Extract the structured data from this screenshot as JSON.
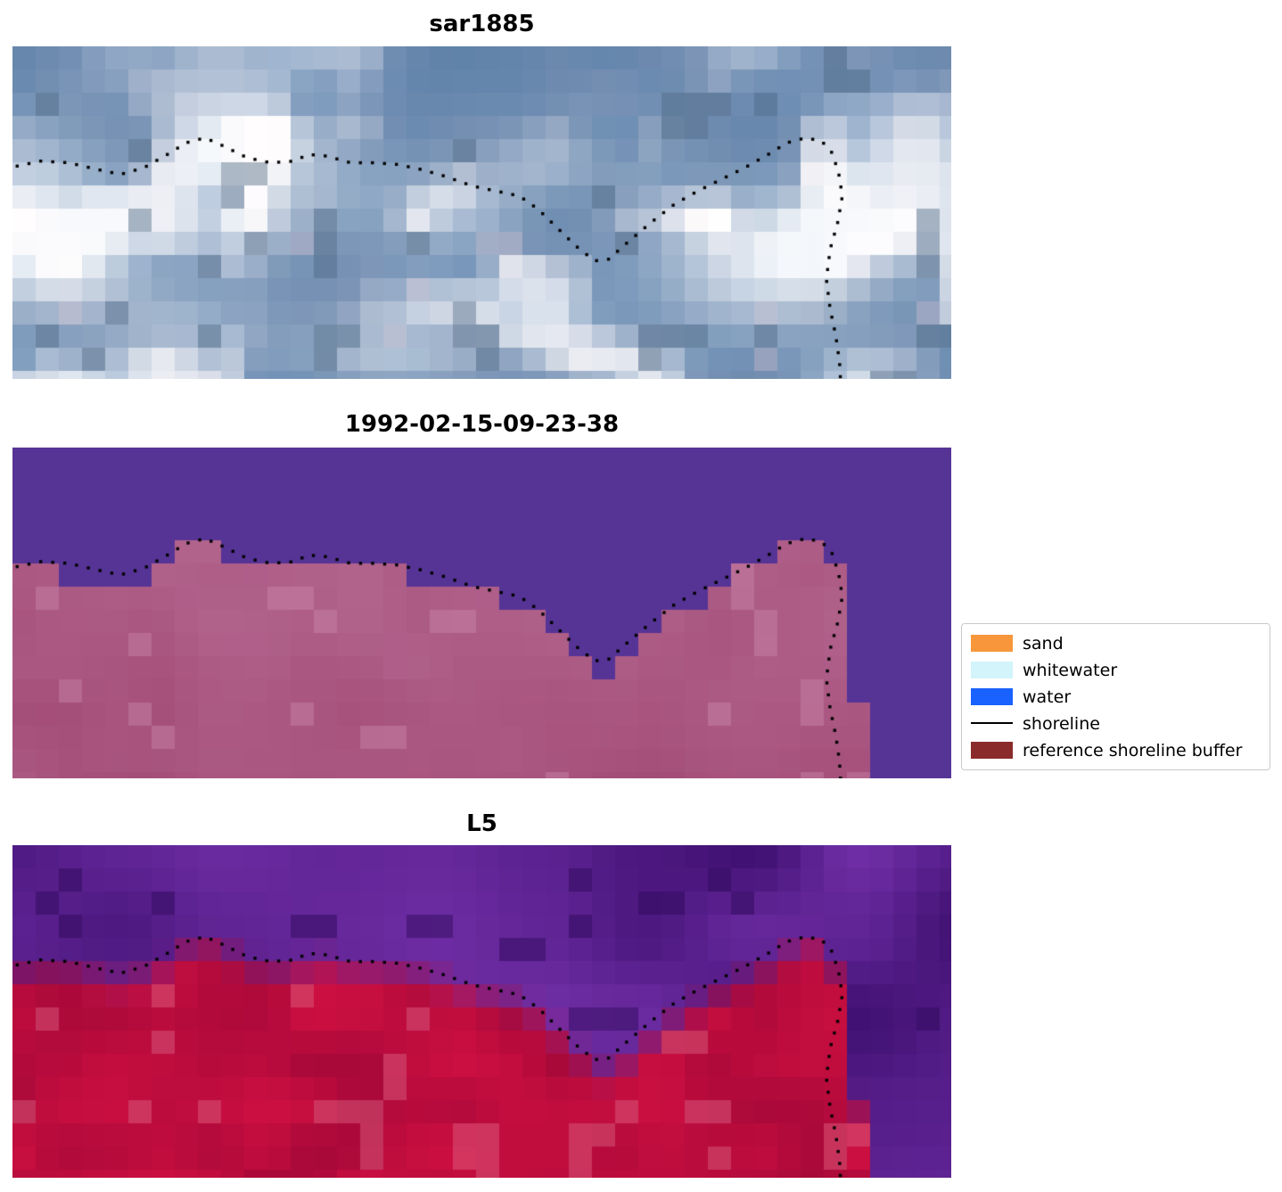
{
  "figure": {
    "panels": [
      {
        "title": "sar1885"
      },
      {
        "title": "1992-02-15-09-23-38"
      },
      {
        "title": "L5"
      }
    ],
    "legend": {
      "items": [
        {
          "label": "sand",
          "swatch": "patch",
          "color": "#F7963B"
        },
        {
          "label": "whitewater",
          "swatch": "patch",
          "color": "#D2F4FA"
        },
        {
          "label": "water",
          "swatch": "patch",
          "color": "#1A62FF"
        },
        {
          "label": "shoreline",
          "swatch": "line",
          "color": "#000000"
        },
        {
          "label": "reference shoreline buffer",
          "swatch": "patch",
          "color": "#8B2A2A"
        }
      ]
    }
  },
  "chart_data": {
    "type": "heatmap",
    "title": "",
    "panels": [
      {
        "title": "sar1885",
        "palette": [
          "#6A8AB0",
          "#FAFAFC"
        ]
      },
      {
        "title": "1992-02-15-09-23-38",
        "palette": [
          "#563496",
          "#B26692"
        ]
      },
      {
        "title": "L5",
        "palette": [
          "#5A2399",
          "#CC1C4E"
        ]
      }
    ],
    "legend_entries": [
      "sand",
      "whitewater",
      "water",
      "shoreline",
      "reference shoreline buffer"
    ],
    "shoreline_normalized_xy": [
      [
        0.005,
        0.36
      ],
      [
        0.03,
        0.345
      ],
      [
        0.06,
        0.35
      ],
      [
        0.09,
        0.37
      ],
      [
        0.115,
        0.385
      ],
      [
        0.14,
        0.365
      ],
      [
        0.165,
        0.325
      ],
      [
        0.185,
        0.29
      ],
      [
        0.205,
        0.275
      ],
      [
        0.225,
        0.3
      ],
      [
        0.25,
        0.335
      ],
      [
        0.275,
        0.35
      ],
      [
        0.3,
        0.345
      ],
      [
        0.315,
        0.325
      ],
      [
        0.335,
        0.33
      ],
      [
        0.36,
        0.35
      ],
      [
        0.385,
        0.35
      ],
      [
        0.41,
        0.355
      ],
      [
        0.435,
        0.37
      ],
      [
        0.46,
        0.39
      ],
      [
        0.49,
        0.42
      ],
      [
        0.515,
        0.435
      ],
      [
        0.54,
        0.45
      ],
      [
        0.56,
        0.49
      ],
      [
        0.58,
        0.545
      ],
      [
        0.6,
        0.6
      ],
      [
        0.62,
        0.645
      ],
      [
        0.635,
        0.64
      ],
      [
        0.655,
        0.59
      ],
      [
        0.68,
        0.53
      ],
      [
        0.705,
        0.475
      ],
      [
        0.73,
        0.435
      ],
      [
        0.755,
        0.4
      ],
      [
        0.78,
        0.365
      ],
      [
        0.805,
        0.325
      ],
      [
        0.825,
        0.29
      ],
      [
        0.845,
        0.275
      ],
      [
        0.862,
        0.285
      ],
      [
        0.873,
        0.32
      ],
      [
        0.88,
        0.38
      ],
      [
        0.884,
        0.45
      ],
      [
        0.879,
        0.53
      ],
      [
        0.871,
        0.61
      ],
      [
        0.867,
        0.7
      ],
      [
        0.871,
        0.79
      ],
      [
        0.877,
        0.87
      ],
      [
        0.881,
        0.95
      ],
      [
        0.882,
        1.0
      ]
    ]
  }
}
